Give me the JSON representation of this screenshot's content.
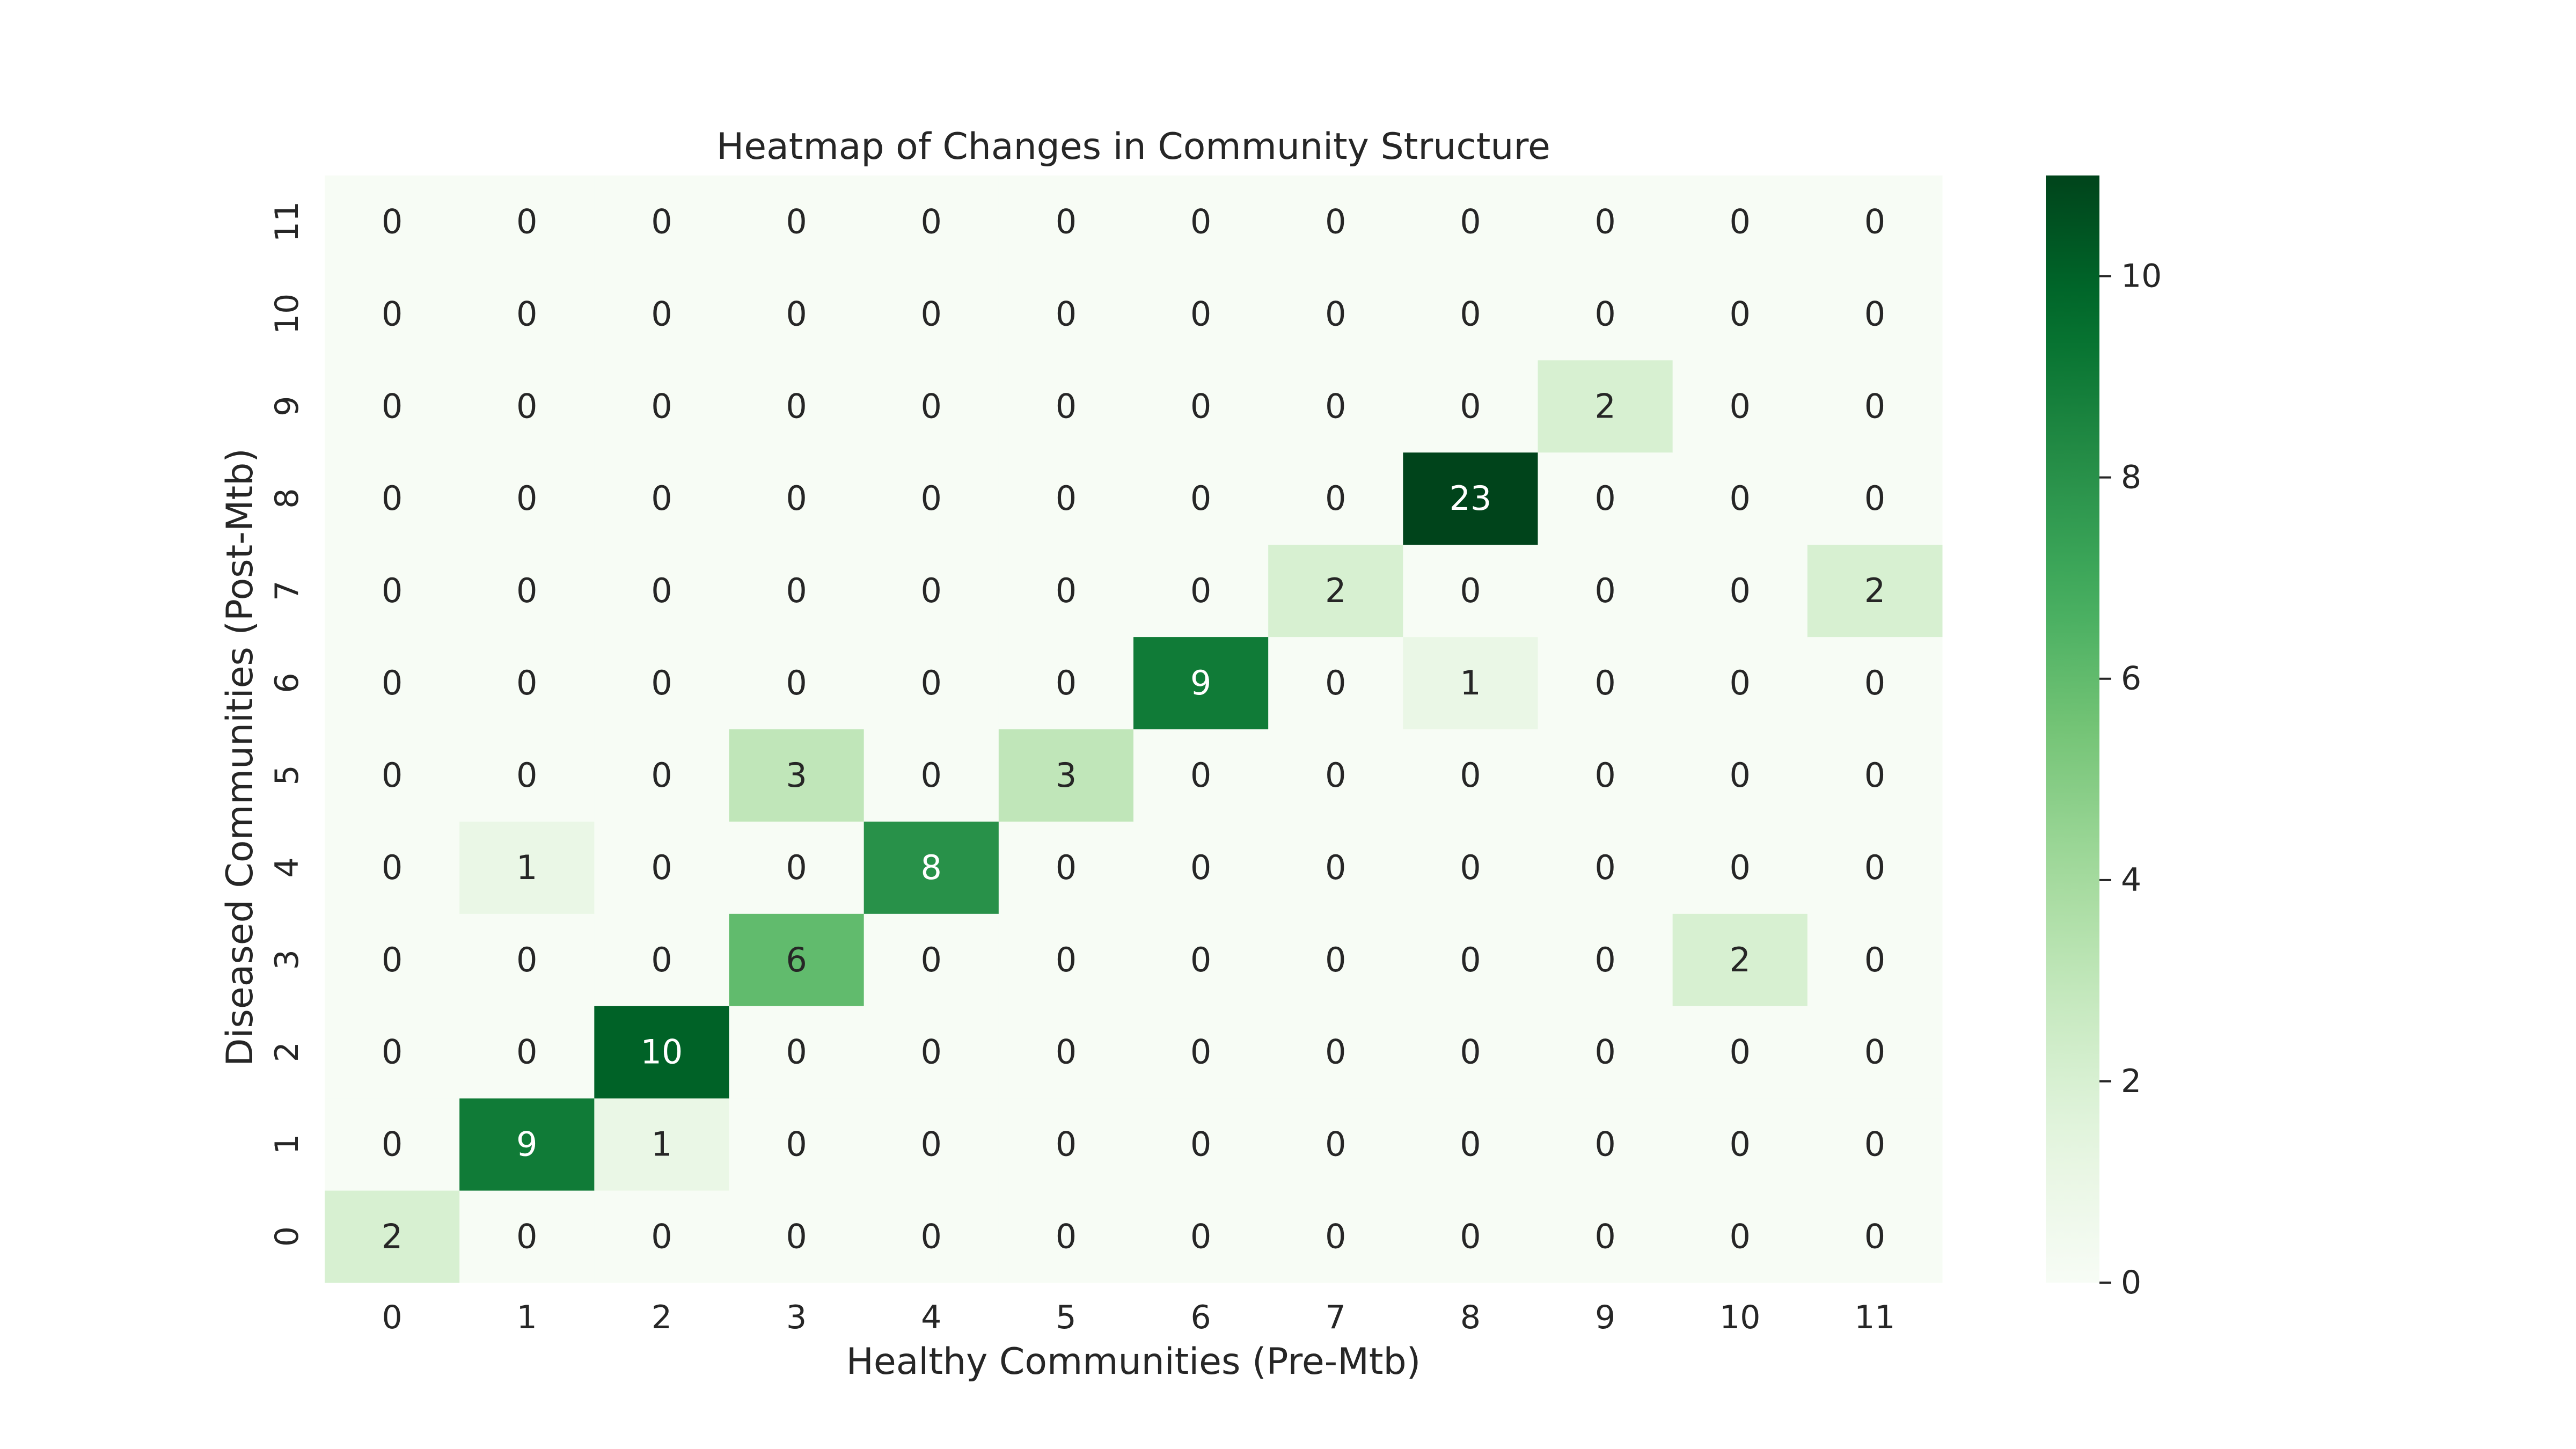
{
  "chart_data": {
    "type": "heatmap",
    "title": "Heatmap of Changes in Community Structure",
    "xlabel": "Healthy Communities (Pre-Mtb)",
    "ylabel": "Diseased Communities (Post-Mtb)",
    "x_categories": [
      "0",
      "1",
      "2",
      "3",
      "4",
      "5",
      "6",
      "7",
      "8",
      "9",
      "10",
      "11"
    ],
    "y_categories": [
      "0",
      "1",
      "2",
      "3",
      "4",
      "5",
      "6",
      "7",
      "8",
      "9",
      "10",
      "11"
    ],
    "y_order": "bottom-to-top",
    "values": [
      [
        2,
        0,
        0,
        0,
        0,
        0,
        0,
        0,
        0,
        0,
        0,
        0
      ],
      [
        0,
        9,
        1,
        0,
        0,
        0,
        0,
        0,
        0,
        0,
        0,
        0
      ],
      [
        0,
        0,
        10,
        0,
        0,
        0,
        0,
        0,
        0,
        0,
        0,
        0
      ],
      [
        0,
        0,
        0,
        6,
        0,
        0,
        0,
        0,
        0,
        0,
        2,
        0
      ],
      [
        0,
        1,
        0,
        0,
        8,
        0,
        0,
        0,
        0,
        0,
        0,
        0
      ],
      [
        0,
        0,
        0,
        3,
        0,
        3,
        0,
        0,
        0,
        0,
        0,
        0
      ],
      [
        0,
        0,
        0,
        0,
        0,
        0,
        9,
        0,
        1,
        0,
        0,
        0
      ],
      [
        0,
        0,
        0,
        0,
        0,
        0,
        0,
        2,
        0,
        0,
        0,
        2
      ],
      [
        0,
        0,
        0,
        0,
        0,
        0,
        0,
        0,
        23,
        0,
        0,
        0
      ],
      [
        0,
        0,
        0,
        0,
        0,
        0,
        0,
        0,
        0,
        2,
        0,
        0
      ],
      [
        0,
        0,
        0,
        0,
        0,
        0,
        0,
        0,
        0,
        0,
        0,
        0
      ],
      [
        0,
        0,
        0,
        0,
        0,
        0,
        0,
        0,
        0,
        0,
        0,
        0
      ]
    ],
    "annotated": true,
    "colormap": "Greens",
    "color_range": [
      0,
      11
    ],
    "colorbar_ticks": [
      "0",
      "2",
      "4",
      "6",
      "8",
      "10"
    ],
    "grid": false
  }
}
